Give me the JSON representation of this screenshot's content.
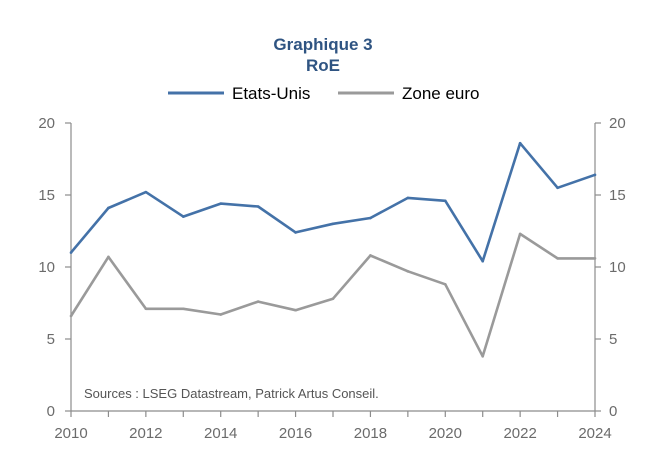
{
  "chart_data": {
    "type": "line",
    "title": "Graphique 3",
    "subtitle": "RoE",
    "x": [
      2010,
      2011,
      2012,
      2013,
      2014,
      2015,
      2016,
      2017,
      2018,
      2019,
      2020,
      2021,
      2022,
      2023,
      2024
    ],
    "series": [
      {
        "name": "Etats-Unis",
        "color": "#4472a8",
        "values": [
          11.0,
          14.1,
          15.2,
          13.5,
          14.4,
          14.2,
          12.4,
          13.0,
          13.4,
          14.8,
          14.6,
          10.4,
          18.6,
          15.5,
          16.4
        ]
      },
      {
        "name": "Zone euro",
        "color": "#9a9a9a",
        "values": [
          6.6,
          10.7,
          7.1,
          7.1,
          6.7,
          7.6,
          7.0,
          7.8,
          10.8,
          9.7,
          8.8,
          3.8,
          12.3,
          10.6,
          10.6
        ]
      }
    ],
    "xticks": [
      "2010",
      "2012",
      "2014",
      "2016",
      "2018",
      "2020",
      "2022",
      "2024"
    ],
    "yticks_left": [
      "0",
      "5",
      "10",
      "15",
      "20"
    ],
    "yticks_right": [
      "0",
      "5",
      "10",
      "15",
      "20"
    ],
    "ylim": [
      0,
      20
    ],
    "xlim": [
      2010,
      2024
    ],
    "legend_position": "top-center",
    "grid": false,
    "source": "Sources : LSEG Datastream, Patrick Artus Conseil.",
    "title_color": "#2f5482",
    "axis_color": "#8c8c8c"
  }
}
